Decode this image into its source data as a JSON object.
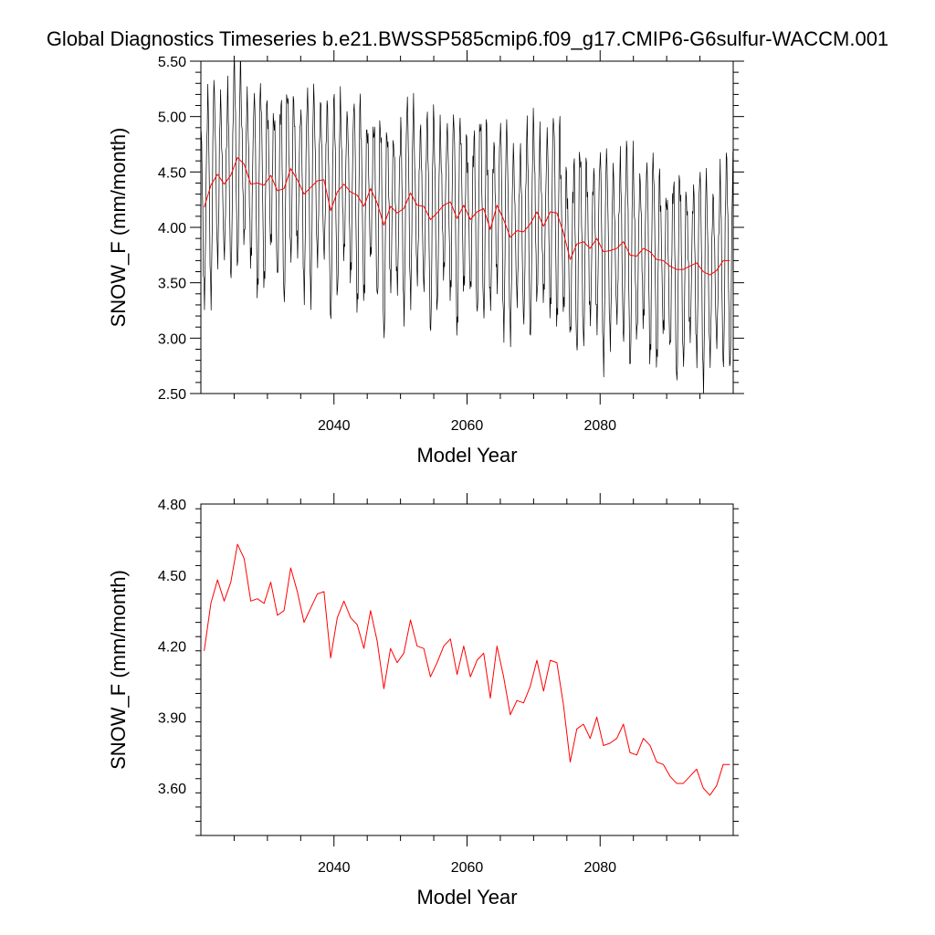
{
  "title": "Global Diagnostics Timeseries b.e21.BWSSP585cmip6.f09_g17.CMIP6-G6sulfur-WACCM.001",
  "colors": {
    "monthly": "#000000",
    "annual": "#ff0000"
  },
  "chart_data": [
    {
      "type": "line",
      "xlabel": "Model Year",
      "ylabel": "SNOW_F (mm/month)",
      "xlim": [
        2020,
        2100
      ],
      "ylim": [
        2.5,
        5.5
      ],
      "x_ticks": [
        2040,
        2060,
        2080
      ],
      "x_tick_labels": [
        "2040",
        "2060",
        "2080"
      ],
      "y_ticks": [
        2.5,
        3.0,
        3.5,
        4.0,
        4.5,
        5.0,
        5.5
      ],
      "y_tick_labels": [
        "2.50",
        "3.00",
        "3.50",
        "4.00",
        "4.50",
        "5.00",
        "5.50"
      ],
      "grid": false,
      "series": [
        {
          "color": "#000000",
          "monthly": true,
          "monthly_cycle": [
            4.85,
            4.7,
            4.4,
            4.05,
            3.65,
            3.4,
            3.35,
            3.5,
            3.95,
            4.4,
            4.75,
            4.9
          ],
          "x": [
            2020.5,
            2021.5,
            2022.5,
            2023.5,
            2024.5,
            2025.5,
            2026.5,
            2027.5,
            2028.5,
            2029.5,
            2030.5,
            2031.5,
            2032.5,
            2033.5,
            2034.5,
            2035.5,
            2036.5,
            2037.5,
            2038.5,
            2039.5,
            2040.5,
            2041.5,
            2042.5,
            2043.5,
            2044.5,
            2045.5,
            2046.5,
            2047.5,
            2048.5,
            2049.5,
            2050.5,
            2051.5,
            2052.5,
            2053.5,
            2054.5,
            2055.5,
            2056.5,
            2057.5,
            2058.5,
            2059.5,
            2060.5,
            2061.5,
            2062.5,
            2063.5,
            2064.5,
            2065.5,
            2066.5,
            2067.5,
            2068.5,
            2069.5,
            2070.5,
            2071.5,
            2072.5,
            2073.5,
            2074.5,
            2075.5,
            2076.5,
            2077.5,
            2078.5,
            2079.5,
            2080.5,
            2081.5,
            2082.5,
            2083.5,
            2084.5,
            2085.5,
            2086.5,
            2087.5,
            2088.5,
            2089.5,
            2090.5,
            2091.5,
            2092.5,
            2093.5,
            2094.5,
            2095.5,
            2096.5,
            2097.5,
            2098.5,
            2099.5
          ],
          "y": [
            4.18,
            4.38,
            4.48,
            4.39,
            4.47,
            4.63,
            4.57,
            4.39,
            4.4,
            4.38,
            4.47,
            4.33,
            4.35,
            4.53,
            4.43,
            4.3,
            4.36,
            4.42,
            4.43,
            4.15,
            4.32,
            4.39,
            4.32,
            4.29,
            4.19,
            4.35,
            4.22,
            4.02,
            4.19,
            4.13,
            4.17,
            4.31,
            4.2,
            4.19,
            4.07,
            4.13,
            4.2,
            4.23,
            4.08,
            4.2,
            4.07,
            4.14,
            4.17,
            3.98,
            4.2,
            4.07,
            3.91,
            3.97,
            3.96,
            4.03,
            4.14,
            4.01,
            4.14,
            4.13,
            3.95,
            3.71,
            3.85,
            3.87,
            3.81,
            3.9,
            3.78,
            3.79,
            3.81,
            3.87,
            3.75,
            3.74,
            3.81,
            3.78,
            3.71,
            3.7,
            3.65,
            3.62,
            3.62,
            3.65,
            3.68,
            3.6,
            3.57,
            3.61,
            3.7,
            3.7
          ]
        },
        {
          "color": "#ff0000",
          "x": [
            2020.5,
            2021.5,
            2022.5,
            2023.5,
            2024.5,
            2025.5,
            2026.5,
            2027.5,
            2028.5,
            2029.5,
            2030.5,
            2031.5,
            2032.5,
            2033.5,
            2034.5,
            2035.5,
            2036.5,
            2037.5,
            2038.5,
            2039.5,
            2040.5,
            2041.5,
            2042.5,
            2043.5,
            2044.5,
            2045.5,
            2046.5,
            2047.5,
            2048.5,
            2049.5,
            2050.5,
            2051.5,
            2052.5,
            2053.5,
            2054.5,
            2055.5,
            2056.5,
            2057.5,
            2058.5,
            2059.5,
            2060.5,
            2061.5,
            2062.5,
            2063.5,
            2064.5,
            2065.5,
            2066.5,
            2067.5,
            2068.5,
            2069.5,
            2070.5,
            2071.5,
            2072.5,
            2073.5,
            2074.5,
            2075.5,
            2076.5,
            2077.5,
            2078.5,
            2079.5,
            2080.5,
            2081.5,
            2082.5,
            2083.5,
            2084.5,
            2085.5,
            2086.5,
            2087.5,
            2088.5,
            2089.5,
            2090.5,
            2091.5,
            2092.5,
            2093.5,
            2094.5,
            2095.5,
            2096.5,
            2097.5,
            2098.5,
            2099.5
          ],
          "y": [
            4.18,
            4.38,
            4.48,
            4.39,
            4.47,
            4.63,
            4.57,
            4.39,
            4.4,
            4.38,
            4.47,
            4.33,
            4.35,
            4.53,
            4.43,
            4.3,
            4.36,
            4.42,
            4.43,
            4.15,
            4.32,
            4.39,
            4.32,
            4.29,
            4.19,
            4.35,
            4.22,
            4.02,
            4.19,
            4.13,
            4.17,
            4.31,
            4.2,
            4.19,
            4.07,
            4.13,
            4.2,
            4.23,
            4.08,
            4.2,
            4.07,
            4.14,
            4.17,
            3.98,
            4.2,
            4.07,
            3.91,
            3.97,
            3.96,
            4.03,
            4.14,
            4.01,
            4.14,
            4.13,
            3.95,
            3.71,
            3.85,
            3.87,
            3.81,
            3.9,
            3.78,
            3.79,
            3.81,
            3.87,
            3.75,
            3.74,
            3.81,
            3.78,
            3.71,
            3.7,
            3.65,
            3.62,
            3.62,
            3.65,
            3.68,
            3.6,
            3.57,
            3.61,
            3.7,
            3.7
          ]
        }
      ]
    },
    {
      "type": "line",
      "xlabel": "Model Year",
      "ylabel": "SNOW_F (mm/month)",
      "xlim": [
        2020,
        2100
      ],
      "ylim": [
        3.4,
        4.8
      ],
      "x_ticks": [
        2040,
        2060,
        2080
      ],
      "x_tick_labels": [
        "2040",
        "2060",
        "2080"
      ],
      "y_ticks": [
        3.6,
        3.9,
        4.2,
        4.5,
        4.8
      ],
      "y_tick_labels": [
        "3.60",
        "3.90",
        "4.20",
        "4.50",
        "4.80"
      ],
      "grid": false,
      "series": [
        {
          "color": "#ff0000",
          "x": [
            2020.5,
            2021.5,
            2022.5,
            2023.5,
            2024.5,
            2025.5,
            2026.5,
            2027.5,
            2028.5,
            2029.5,
            2030.5,
            2031.5,
            2032.5,
            2033.5,
            2034.5,
            2035.5,
            2036.5,
            2037.5,
            2038.5,
            2039.5,
            2040.5,
            2041.5,
            2042.5,
            2043.5,
            2044.5,
            2045.5,
            2046.5,
            2047.5,
            2048.5,
            2049.5,
            2050.5,
            2051.5,
            2052.5,
            2053.5,
            2054.5,
            2055.5,
            2056.5,
            2057.5,
            2058.5,
            2059.5,
            2060.5,
            2061.5,
            2062.5,
            2063.5,
            2064.5,
            2065.5,
            2066.5,
            2067.5,
            2068.5,
            2069.5,
            2070.5,
            2071.5,
            2072.5,
            2073.5,
            2074.5,
            2075.5,
            2076.5,
            2077.5,
            2078.5,
            2079.5,
            2080.5,
            2081.5,
            2082.5,
            2083.5,
            2084.5,
            2085.5,
            2086.5,
            2087.5,
            2088.5,
            2089.5,
            2090.5,
            2091.5,
            2092.5,
            2093.5,
            2094.5,
            2095.5,
            2096.5,
            2097.5,
            2098.5,
            2099.5
          ],
          "y": [
            4.18,
            4.38,
            4.48,
            4.39,
            4.47,
            4.63,
            4.57,
            4.39,
            4.4,
            4.38,
            4.47,
            4.33,
            4.35,
            4.53,
            4.43,
            4.3,
            4.36,
            4.42,
            4.43,
            4.15,
            4.32,
            4.39,
            4.32,
            4.29,
            4.19,
            4.35,
            4.22,
            4.02,
            4.19,
            4.13,
            4.17,
            4.31,
            4.2,
            4.19,
            4.07,
            4.13,
            4.2,
            4.23,
            4.08,
            4.2,
            4.07,
            4.14,
            4.17,
            3.98,
            4.2,
            4.07,
            3.91,
            3.97,
            3.96,
            4.03,
            4.14,
            4.01,
            4.14,
            4.13,
            3.95,
            3.71,
            3.85,
            3.87,
            3.81,
            3.9,
            3.78,
            3.79,
            3.81,
            3.87,
            3.75,
            3.74,
            3.81,
            3.78,
            3.71,
            3.7,
            3.65,
            3.62,
            3.62,
            3.65,
            3.68,
            3.6,
            3.57,
            3.61,
            3.7,
            3.7
          ]
        }
      ]
    }
  ]
}
